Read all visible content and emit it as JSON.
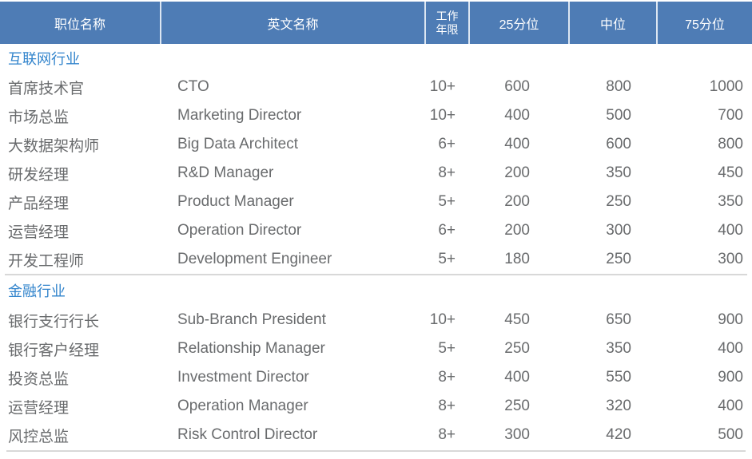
{
  "colors": {
    "header_bg": "#4E7CB5",
    "header_text": "#FFFFFF",
    "header_sep": "#DCE6F2",
    "section_title": "#3284CC",
    "body_text": "#696B6D",
    "divider": "#D8D8D8",
    "page_bg": "#FFFFFF"
  },
  "table": {
    "columns": [
      {
        "key": "position",
        "label": "职位名称"
      },
      {
        "key": "english",
        "label": "英文名称"
      },
      {
        "key": "years",
        "label_line1": "工作",
        "label_line2": "年限"
      },
      {
        "key": "p25",
        "label": "25分位"
      },
      {
        "key": "median",
        "label": "中位"
      },
      {
        "key": "p75",
        "label": "75分位"
      }
    ],
    "sections": [
      {
        "title": "互联网行业",
        "rows": [
          {
            "position": "首席技术官",
            "english": "CTO",
            "years": "10+",
            "p25": "600",
            "median": "800",
            "p75": "1000"
          },
          {
            "position": "市场总监",
            "english": "Marketing Director",
            "years": "10+",
            "p25": "400",
            "median": "500",
            "p75": "700"
          },
          {
            "position": "大数据架构师",
            "english": "Big Data Architect",
            "years": "6+",
            "p25": "400",
            "median": "600",
            "p75": "800"
          },
          {
            "position": "研发经理",
            "english": "R&D Manager",
            "years": "8+",
            "p25": "200",
            "median": "350",
            "p75": "450"
          },
          {
            "position": "产品经理",
            "english": "Product Manager",
            "years": "5+",
            "p25": "200",
            "median": "250",
            "p75": "350"
          },
          {
            "position": "运营经理",
            "english": "Operation Director",
            "years": "6+",
            "p25": "200",
            "median": "300",
            "p75": "400"
          },
          {
            "position": "开发工程师",
            "english": "Development Engineer",
            "years": "5+",
            "p25": "180",
            "median": "250",
            "p75": "300"
          }
        ]
      },
      {
        "title": "金融行业",
        "rows": [
          {
            "position": "银行支行行长",
            "english": "Sub-Branch President",
            "years": "10+",
            "p25": "450",
            "median": "650",
            "p75": "900"
          },
          {
            "position": "银行客户经理",
            "english": "Relationship Manager",
            "years": "5+",
            "p25": "250",
            "median": "350",
            "p75": "400"
          },
          {
            "position": "投资总监",
            "english": "Investment Director",
            "years": "8+",
            "p25": "400",
            "median": "550",
            "p75": "900"
          },
          {
            "position": "运营经理",
            "english": "Operation Manager",
            "years": "8+",
            "p25": "250",
            "median": "320",
            "p75": "400"
          },
          {
            "position": "风控总监",
            "english": "Risk Control Director",
            "years": "8+",
            "p25": "300",
            "median": "420",
            "p75": "500"
          }
        ]
      }
    ]
  }
}
